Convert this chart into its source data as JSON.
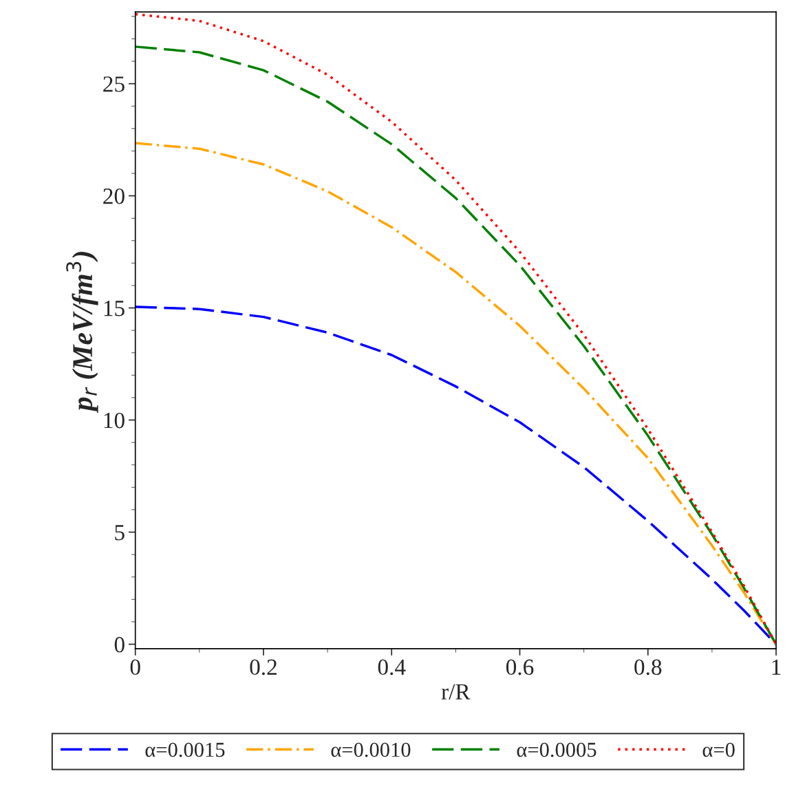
{
  "chart_data": {
    "type": "line",
    "xlabel": "r/R",
    "ylabel": "p$_{r}$ (MeV/fm$^{3}$)",
    "x": [
      0,
      0.1,
      0.2,
      0.3,
      0.4,
      0.5,
      0.6,
      0.7,
      0.8,
      0.9,
      0.95,
      1.0
    ],
    "series": [
      {
        "name": "α=0.0015",
        "color": "#0000ff",
        "line_style": "dashed",
        "values": [
          15.05,
          14.95,
          14.6,
          13.9,
          12.9,
          11.5,
          9.9,
          7.9,
          5.5,
          2.9,
          1.5,
          0
        ]
      },
      {
        "name": "α=0.0010",
        "color": "#ffa500",
        "line_style": "dashdot",
        "values": [
          22.35,
          22.1,
          21.4,
          20.2,
          18.6,
          16.6,
          14.2,
          11.4,
          8.3,
          4.4,
          2.3,
          0
        ]
      },
      {
        "name": "α=0.0005",
        "color": "#008000",
        "line_style": "dashed",
        "values": [
          26.65,
          26.4,
          25.6,
          24.2,
          22.3,
          19.9,
          16.9,
          13.3,
          9.3,
          4.9,
          2.5,
          0
        ]
      },
      {
        "name": "α=0",
        "color": "#ff0000",
        "line_style": "dotted",
        "values": [
          28.1,
          27.8,
          26.9,
          25.4,
          23.3,
          20.7,
          17.5,
          13.8,
          9.6,
          5.0,
          2.6,
          0
        ]
      }
    ],
    "xlim": [
      0,
      1
    ],
    "ylim": [
      -0.2,
      28.2
    ],
    "xticks": [
      0,
      0.2,
      0.4,
      0.6,
      0.8,
      1
    ],
    "yticks": [
      0,
      5,
      10,
      15,
      20,
      25
    ],
    "grid": false,
    "legend": "bottom"
  }
}
